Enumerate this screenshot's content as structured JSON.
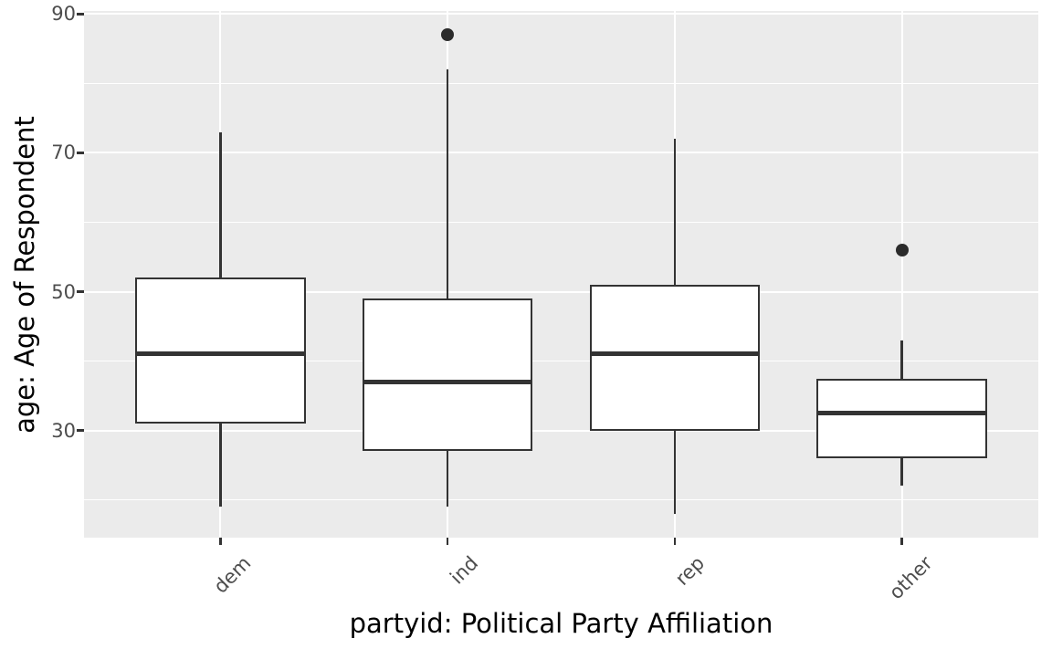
{
  "chart_data": {
    "type": "boxplot",
    "title": "",
    "xlabel": "partyid: Political Party Affiliation",
    "ylabel": "age: Age of Respondent",
    "categories": [
      "dem",
      "ind",
      "rep",
      "other"
    ],
    "series": [
      {
        "name": "dem",
        "min": 19,
        "q1": 31,
        "median": 41,
        "q3": 52,
        "max": 73,
        "outliers": []
      },
      {
        "name": "ind",
        "min": 19,
        "q1": 27,
        "median": 37,
        "q3": 49,
        "max": 82,
        "outliers": [
          87
        ]
      },
      {
        "name": "rep",
        "min": 18,
        "q1": 30,
        "median": 41,
        "q3": 51,
        "max": 72,
        "outliers": []
      },
      {
        "name": "other",
        "min": 22,
        "q1": 26,
        "median": 32.5,
        "q3": 37.5,
        "max": 43,
        "outliers": [
          56
        ]
      }
    ],
    "y_major_ticks": [
      30,
      50,
      70,
      90
    ],
    "y_minor_ticks": [
      20,
      40,
      60,
      80
    ],
    "ylim": [
      14.55,
      90.45
    ],
    "grid": "major-and-minor, white on gray panel",
    "legend": "none",
    "theme": {
      "panel_background": "#EBEBEB",
      "gridline_color": "#FFFFFF",
      "box_stroke_color": "#333333",
      "box_fill_color": "#FFFFFF",
      "outlier_color": "#2b2b2b",
      "tick_label_color": "#4D4D4D",
      "axis_title_color": "#000000"
    }
  }
}
